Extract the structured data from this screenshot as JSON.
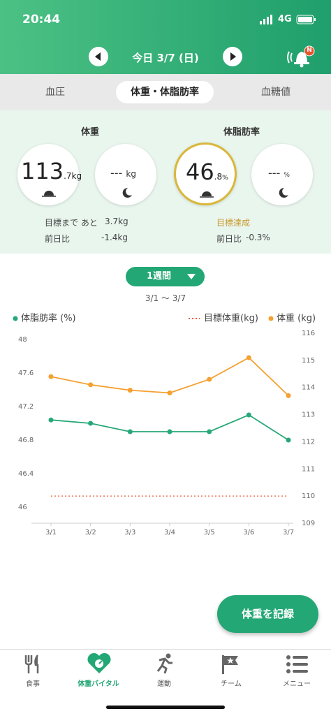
{
  "status": {
    "time": "20:44",
    "network": "4G"
  },
  "header": {
    "date": "今日 3/7 (日)",
    "badge": "N"
  },
  "tabs": [
    "血圧",
    "体重・体脂肪率",
    "血糖値"
  ],
  "summary": {
    "weight": {
      "label": "体重",
      "morning_int": "113",
      "morning_dec": ".7",
      "unit": "kg",
      "evening": "---",
      "evening_unit": "kg",
      "goal_text": "目標まで あと",
      "goal_value": "3.7kg",
      "diff_label": "前日比",
      "diff_value": "-1.4kg"
    },
    "fat": {
      "label": "体脂肪率",
      "morning_int": "46",
      "morning_dec": ".8",
      "unit": "%",
      "evening": "---",
      "evening_unit": "%",
      "goal_text": "目標達成",
      "diff_label": "前日比",
      "diff_value": "-0.3%"
    }
  },
  "period": {
    "button": "1週間",
    "range": "3/1 〜 3/7"
  },
  "chart_data": {
    "type": "line",
    "categories": [
      "3/1",
      "3/2",
      "3/3",
      "3/4",
      "3/5",
      "3/6",
      "3/7"
    ],
    "series": [
      {
        "name": "体脂肪率 (%)",
        "color": "#27a878",
        "values": [
          47.04,
          47.0,
          46.9,
          46.9,
          46.9,
          47.1,
          46.8
        ]
      },
      {
        "name": "目標体重(kg)",
        "color": "#ee5a36",
        "axis": "y2",
        "dashed": true,
        "values": [
          110,
          110,
          110,
          110,
          110,
          110,
          110
        ]
      },
      {
        "name": "体重 (kg)",
        "color": "#f5a030",
        "axis": "y2",
        "values": [
          114.4,
          114.1,
          113.9,
          113.8,
          114.3,
          115.1,
          113.7
        ]
      }
    ],
    "ylim": [
      46,
      48
    ],
    "yticks": [
      46,
      46.4,
      46.8,
      47.2,
      47.6,
      48
    ],
    "y2lim": [
      109,
      116
    ],
    "y2ticks": [
      109,
      110,
      111,
      112,
      113,
      114,
      115,
      116
    ]
  },
  "fab": "体重を記録",
  "nav": [
    "食事",
    "体重バイタル",
    "運動",
    "チーム",
    "メニュー"
  ]
}
